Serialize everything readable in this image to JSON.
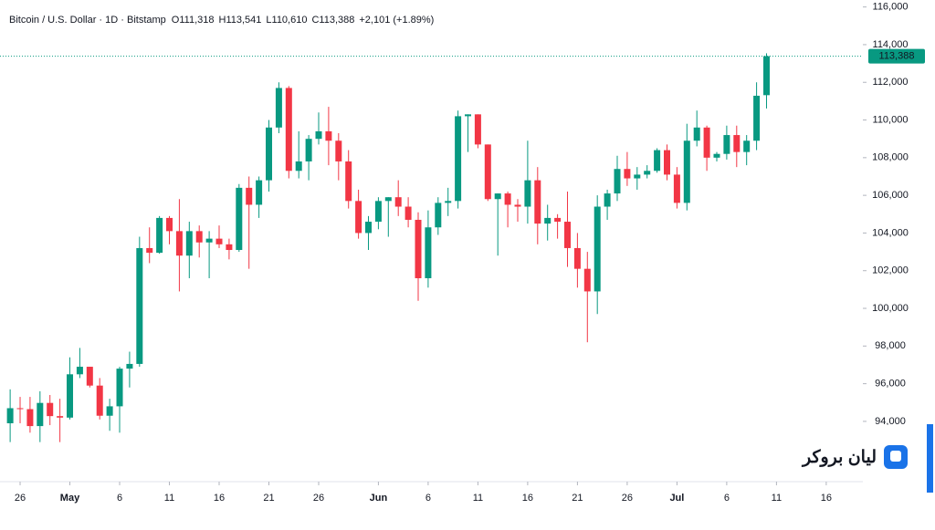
{
  "header": {
    "symbol": "Bitcoin / U.S. Dollar · 1D · Bitstamp",
    "ohlc": [
      {
        "label": "O",
        "value": "111,318"
      },
      {
        "label": "H",
        "value": "113,541"
      },
      {
        "label": "L",
        "value": "110,610"
      },
      {
        "label": "C",
        "value": "113,388"
      }
    ],
    "change": "+2,101 (+1.89%)"
  },
  "logo": "لیان بروکر",
  "chart_data": {
    "type": "candlestick",
    "up_color": "#089981",
    "down_color": "#f23645",
    "xlim": [
      -1.02,
      85.68
    ],
    "ylim": [
      90800,
      116370
    ],
    "xticks": [
      {
        "value": 1,
        "label": "26"
      },
      {
        "value": 6,
        "label": "May"
      },
      {
        "value": 11,
        "label": "6"
      },
      {
        "value": 16,
        "label": "11"
      },
      {
        "value": 21,
        "label": "16"
      },
      {
        "value": 26,
        "label": "21"
      },
      {
        "value": 31,
        "label": "26"
      },
      {
        "value": 37,
        "label": "Jun"
      },
      {
        "value": 42,
        "label": "6"
      },
      {
        "value": 47,
        "label": "11"
      },
      {
        "value": 52,
        "label": "16"
      },
      {
        "value": 57,
        "label": "21"
      },
      {
        "value": 62,
        "label": "26"
      },
      {
        "value": 67,
        "label": "Jul"
      },
      {
        "value": 72,
        "label": "6"
      },
      {
        "value": 77,
        "label": "11"
      },
      {
        "value": 82,
        "label": "16"
      }
    ],
    "yticks": [
      {
        "value": 94000,
        "label": "94,000"
      },
      {
        "value": 96000,
        "label": "96,000"
      },
      {
        "value": 98000,
        "label": "98,000"
      },
      {
        "value": 100000,
        "label": "100,000"
      },
      {
        "value": 102000,
        "label": "102,000"
      },
      {
        "value": 104000,
        "label": "104,000"
      },
      {
        "value": 106000,
        "label": "106,000"
      },
      {
        "value": 108000,
        "label": "108,000"
      },
      {
        "value": 110000,
        "label": "110,000"
      },
      {
        "value": 112000,
        "label": "112,000"
      },
      {
        "value": 114000,
        "label": "114,000"
      },
      {
        "value": 116000,
        "label": "116,000"
      }
    ],
    "last_price": {
      "value": 113388,
      "label": "113,388"
    },
    "x": [
      0,
      1,
      2,
      3,
      4,
      5,
      6,
      7,
      8,
      9,
      10,
      11,
      12,
      13,
      14,
      15,
      16,
      17,
      18,
      19,
      20,
      21,
      22,
      23,
      24,
      25,
      26,
      27,
      28,
      29,
      30,
      31,
      32,
      33,
      34,
      35,
      36,
      37,
      38,
      39,
      40,
      41,
      42,
      43,
      44,
      45,
      46,
      47,
      48,
      49,
      50,
      51,
      52,
      53,
      54,
      55,
      56,
      57,
      58,
      59,
      60,
      61,
      62,
      63,
      64,
      65,
      66,
      67,
      68,
      69,
      70,
      71,
      72,
      73,
      74,
      75,
      76
    ],
    "open": [
      93900,
      94700,
      94650,
      93750,
      94980,
      94280,
      94200,
      96500,
      96900,
      95900,
      94300,
      94800,
      96800,
      97050,
      103200,
      102950,
      104800,
      104100,
      102800,
      104100,
      103500,
      103700,
      103400,
      103100,
      106400,
      105500,
      106800,
      109600,
      111700,
      107300,
      107800,
      109000,
      109400,
      108900,
      107800,
      105700,
      104000,
      104600,
      105700,
      105900,
      105400,
      104700,
      101600,
      104300,
      105600,
      105700,
      110200,
      110300,
      108700,
      105800,
      106100,
      105500,
      105400,
      106800,
      104500,
      104800,
      104600,
      103200,
      102100,
      100900,
      105400,
      106100,
      107400,
      106900,
      107100,
      107300,
      108400,
      107100,
      105600,
      108900,
      109600,
      108000,
      108200,
      109200,
      108300,
      108900,
      111318
    ],
    "high": [
      95700,
      95300,
      95300,
      95600,
      95400,
      95200,
      97400,
      97900,
      96900,
      96300,
      95200,
      96900,
      97700,
      103800,
      104300,
      104900,
      104900,
      105800,
      104600,
      104400,
      104100,
      104400,
      103700,
      106600,
      107000,
      107000,
      110000,
      112000,
      111800,
      109400,
      109200,
      110400,
      110700,
      109300,
      108400,
      106300,
      104900,
      105900,
      105900,
      106800,
      105900,
      105100,
      105200,
      105900,
      106400,
      110500,
      110300,
      110300,
      108700,
      106100,
      106200,
      105800,
      108900,
      107500,
      105500,
      105000,
      106200,
      104000,
      103000,
      106000,
      106300,
      108100,
      108300,
      107500,
      107600,
      108500,
      108700,
      107500,
      109800,
      110500,
      109700,
      108300,
      109700,
      109700,
      109200,
      112000,
      113541
    ],
    "low": [
      92900,
      93900,
      93400,
      92900,
      93800,
      92900,
      94100,
      96300,
      95800,
      94100,
      93500,
      93400,
      95800,
      96900,
      102400,
      102900,
      103400,
      100900,
      101600,
      102700,
      101600,
      103200,
      102600,
      103000,
      102100,
      104800,
      106200,
      109300,
      106900,
      106900,
      106800,
      108700,
      107600,
      106800,
      105300,
      103700,
      103100,
      104200,
      103800,
      104900,
      104300,
      100400,
      101100,
      103900,
      104900,
      105300,
      108300,
      108500,
      105700,
      102800,
      104300,
      104600,
      104500,
      103400,
      103600,
      103700,
      102200,
      101100,
      98200,
      99700,
      104700,
      105700,
      106500,
      106300,
      106900,
      107200,
      106800,
      105300,
      105200,
      108600,
      107300,
      107800,
      107900,
      107500,
      107600,
      108400,
      110610
    ],
    "close": [
      94700,
      94650,
      93750,
      94980,
      94280,
      94200,
      96500,
      96900,
      95900,
      94300,
      94800,
      96800,
      97050,
      103200,
      102950,
      104800,
      104100,
      102800,
      104100,
      103500,
      103700,
      103400,
      103100,
      106400,
      105500,
      106800,
      109600,
      111700,
      107300,
      107800,
      109000,
      109400,
      108900,
      107800,
      105700,
      104000,
      104600,
      105700,
      105900,
      105400,
      104700,
      101600,
      104300,
      105600,
      105700,
      110200,
      110300,
      108700,
      105800,
      106100,
      105500,
      105400,
      106800,
      104500,
      104800,
      104600,
      103200,
      102100,
      100900,
      105400,
      106100,
      107400,
      106900,
      107100,
      107300,
      108400,
      107100,
      105600,
      108900,
      109600,
      108000,
      108200,
      109200,
      108300,
      108900,
      111287,
      113388
    ]
  }
}
